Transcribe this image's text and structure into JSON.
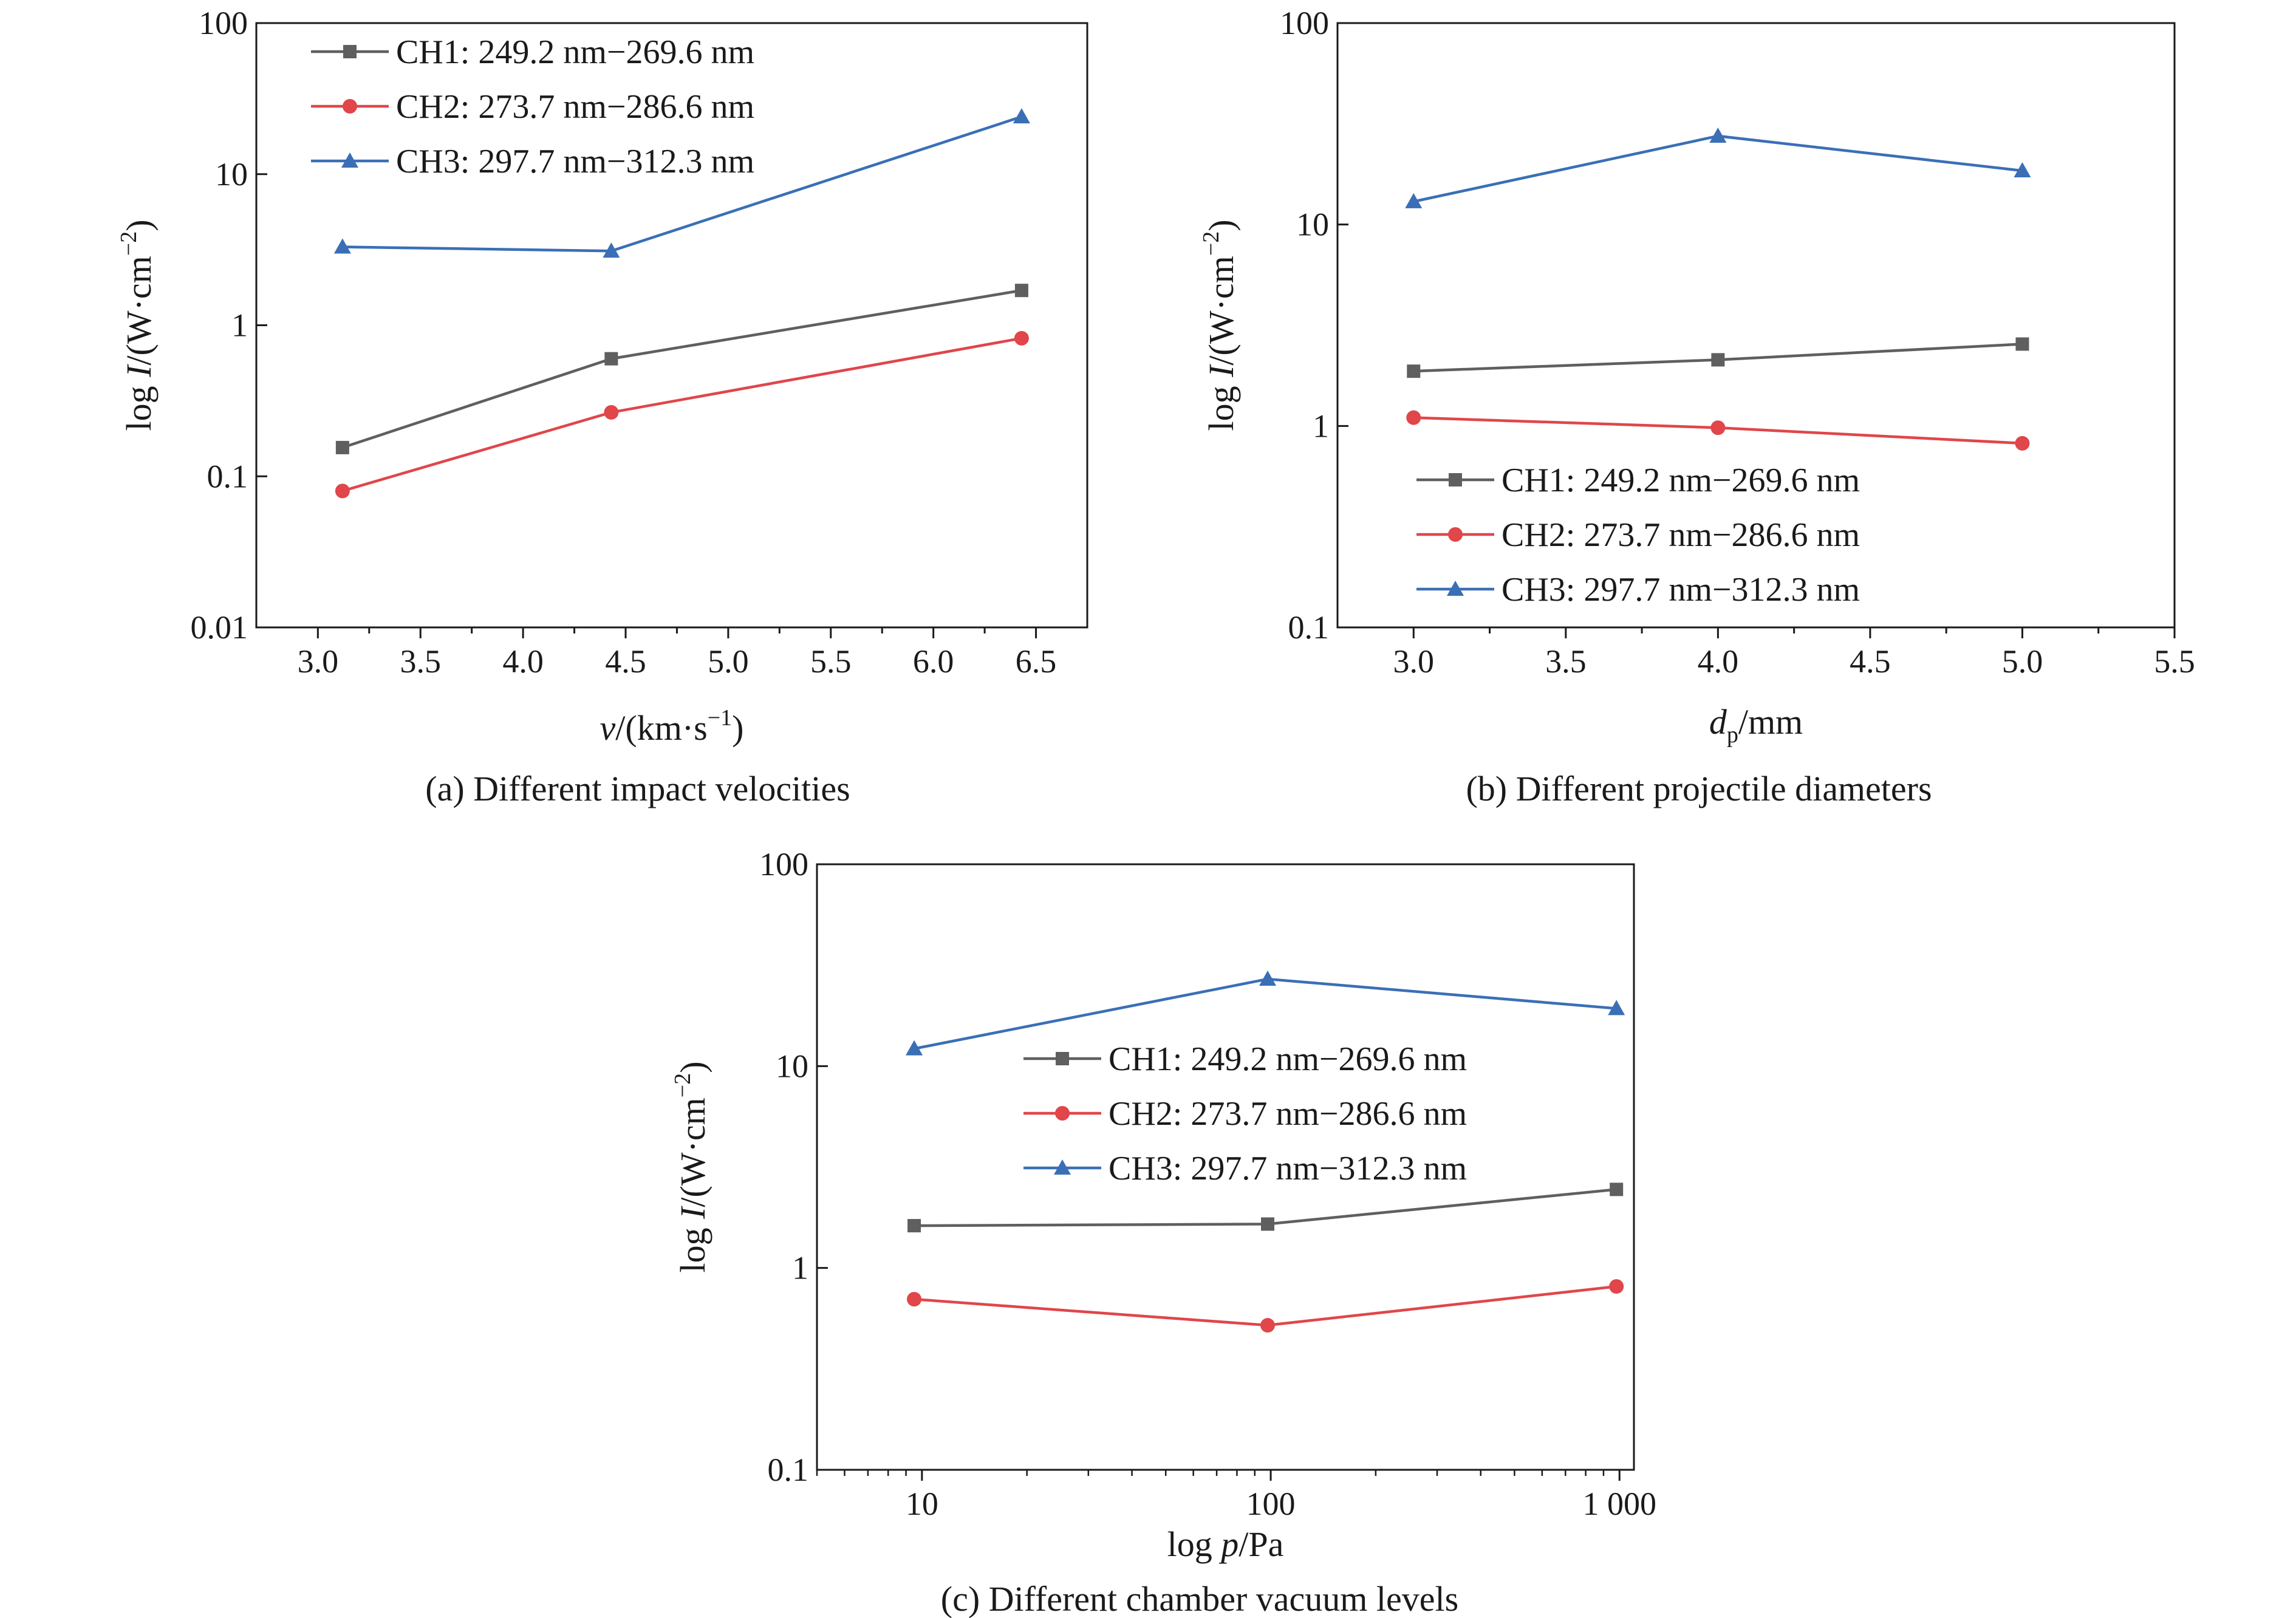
{
  "colors": {
    "CH1": "#5f5f5f",
    "CH2": "#e0464a",
    "CH3": "#3a6fb6",
    "axis": "#1a1a1a"
  },
  "chart_data": [
    {
      "id": "a",
      "type": "line",
      "caption": "(a) Different impact velocities",
      "xlabel": {
        "italic": "v",
        "rest": "/(km·s",
        "sup": "−1",
        "close": ")"
      },
      "ylabel": {
        "pre": "log ",
        "italic": "I",
        "rest": "/(W·cm",
        "sup": "−2",
        "close": ")"
      },
      "x_scale": "linear",
      "y_scale": "log",
      "xlim": [
        2.7,
        6.75
      ],
      "ylim": [
        0.01,
        100
      ],
      "x_ticks": [
        3.0,
        3.5,
        4.0,
        4.5,
        5.0,
        5.5,
        6.0,
        6.5
      ],
      "x_tick_labels": [
        "3.0",
        "3.5",
        "4.0",
        "4.5",
        "5.0",
        "5.5",
        "6.0",
        "6.5"
      ],
      "y_ticks": [
        0.01,
        0.1,
        1,
        10,
        100
      ],
      "y_tick_labels": [
        "0.01",
        "0.1",
        "1",
        "10",
        "100"
      ],
      "legend_position": "top-left",
      "x": [
        3.12,
        4.43,
        6.43
      ],
      "series": [
        {
          "name": "CH1: 249.2 nm−269.6 nm",
          "marker": "square",
          "values": [
            0.155,
            0.6,
            1.7
          ]
        },
        {
          "name": "CH2: 273.7 nm−286.6 nm",
          "marker": "circle",
          "values": [
            0.08,
            0.265,
            0.82
          ]
        },
        {
          "name": "CH3: 297.7 nm−312.3 nm",
          "marker": "triangle",
          "values": [
            3.3,
            3.1,
            24
          ]
        }
      ]
    },
    {
      "id": "b",
      "type": "line",
      "caption": "(b) Different projectile diameters",
      "xlabel": {
        "italic": "d",
        "sub": "p",
        "rest": "/mm"
      },
      "ylabel": {
        "pre": "log ",
        "italic": "I",
        "rest": "/(W·cm",
        "sup": "−2",
        "close": ")"
      },
      "x_scale": "linear",
      "y_scale": "log",
      "xlim": [
        2.75,
        5.5
      ],
      "ylim": [
        0.1,
        100
      ],
      "x_ticks": [
        3.0,
        3.5,
        4.0,
        4.5,
        5.0,
        5.5
      ],
      "x_tick_labels": [
        "3.0",
        "3.5",
        "4.0",
        "4.5",
        "5.0",
        "5.5"
      ],
      "y_ticks": [
        0.1,
        1,
        10,
        100
      ],
      "y_tick_labels": [
        "0.1",
        "1",
        "10",
        "100"
      ],
      "legend_position": "lower-left",
      "x": [
        3.0,
        4.0,
        5.0
      ],
      "series": [
        {
          "name": "CH1: 249.2 nm−269.6 nm",
          "marker": "square",
          "values": [
            1.87,
            2.13,
            2.55
          ]
        },
        {
          "name": "CH2: 273.7 nm−286.6 nm",
          "marker": "circle",
          "values": [
            1.1,
            0.98,
            0.82
          ]
        },
        {
          "name": "CH3: 297.7 nm−312.3 nm",
          "marker": "triangle",
          "values": [
            13,
            27.5,
            18.5
          ]
        }
      ]
    },
    {
      "id": "c",
      "type": "line",
      "caption": "(c) Different chamber vacuum levels",
      "xlabel": {
        "pre": "log ",
        "italic": "p",
        "rest": "/Pa"
      },
      "ylabel": {
        "pre": "log ",
        "italic": "I",
        "rest": "/(W·cm",
        "sup": "−2",
        "close": ")"
      },
      "x_scale": "log",
      "y_scale": "log",
      "xlim": [
        5,
        1100
      ],
      "ylim": [
        0.1,
        100
      ],
      "x_ticks": [
        10,
        100,
        1000
      ],
      "x_tick_labels": [
        "10",
        "100",
        "1 000"
      ],
      "y_ticks": [
        0.1,
        1,
        10,
        100
      ],
      "y_tick_labels": [
        "0.1",
        "1",
        "10",
        "100"
      ],
      "legend_position": "center-left",
      "x": [
        9.5,
        98,
        980
      ],
      "series": [
        {
          "name": "CH1: 249.2 nm−269.6 nm",
          "marker": "square",
          "values": [
            1.62,
            1.65,
            2.45
          ]
        },
        {
          "name": "CH2: 273.7 nm−286.6 nm",
          "marker": "circle",
          "values": [
            0.7,
            0.52,
            0.81
          ]
        },
        {
          "name": "CH3: 297.7 nm−312.3 nm",
          "marker": "triangle",
          "values": [
            12.2,
            27,
            19.3
          ]
        }
      ]
    }
  ]
}
